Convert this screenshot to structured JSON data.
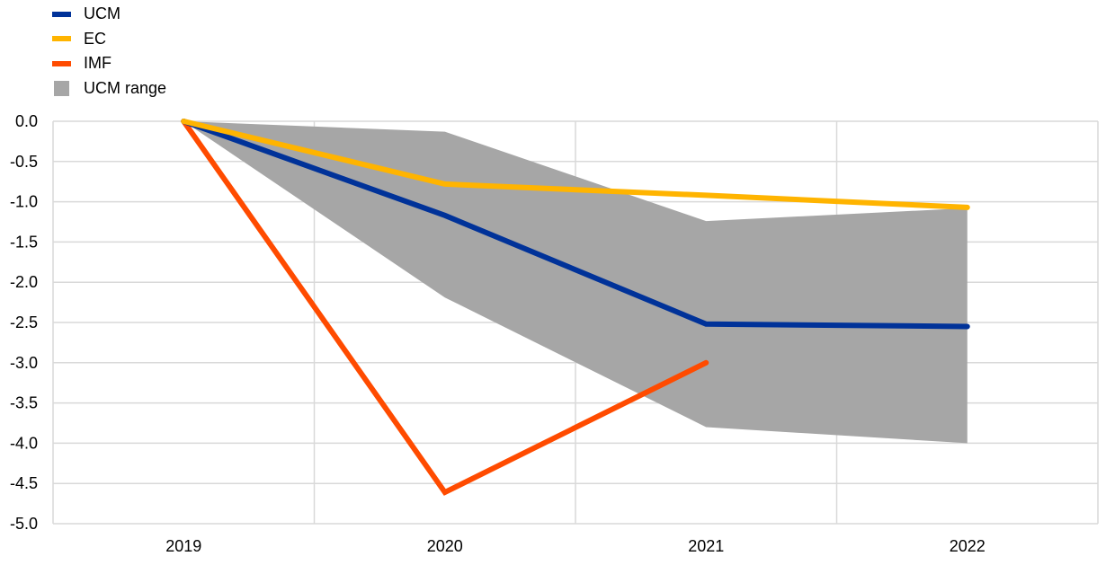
{
  "chart_data": {
    "type": "line",
    "title": "",
    "xlabel": "",
    "ylabel": "",
    "categories": [
      "2019",
      "2020",
      "2021",
      "2022"
    ],
    "ylim": [
      -5.0,
      0.0
    ],
    "yticks": [
      "0.0",
      "-0.5",
      "-1.0",
      "-1.5",
      "-2.0",
      "-2.5",
      "-3.0",
      "-3.5",
      "-4.0",
      "-4.5",
      "-5.0"
    ],
    "ytick_values": [
      0.0,
      -0.5,
      -1.0,
      -1.5,
      -2.0,
      -2.5,
      -3.0,
      -3.5,
      -4.0,
      -4.5,
      -5.0
    ],
    "grid": true,
    "legend_position": "top-left",
    "series": [
      {
        "name": "UCM",
        "color": "#003299",
        "values": [
          0.0,
          -1.17,
          -2.52,
          -2.55
        ]
      },
      {
        "name": "EC",
        "color": "#FFB400",
        "values": [
          0.0,
          -0.78,
          -0.92,
          -1.07
        ]
      },
      {
        "name": "IMF",
        "color": "#FF4B00",
        "values": [
          0.0,
          -4.61,
          -3.0,
          null
        ]
      }
    ],
    "range": {
      "name": "UCM range",
      "color": "#A6A6A6",
      "upper": [
        0.0,
        -0.13,
        -1.24,
        -1.08
      ],
      "lower": [
        0.0,
        -2.19,
        -3.8,
        -4.0
      ]
    }
  }
}
